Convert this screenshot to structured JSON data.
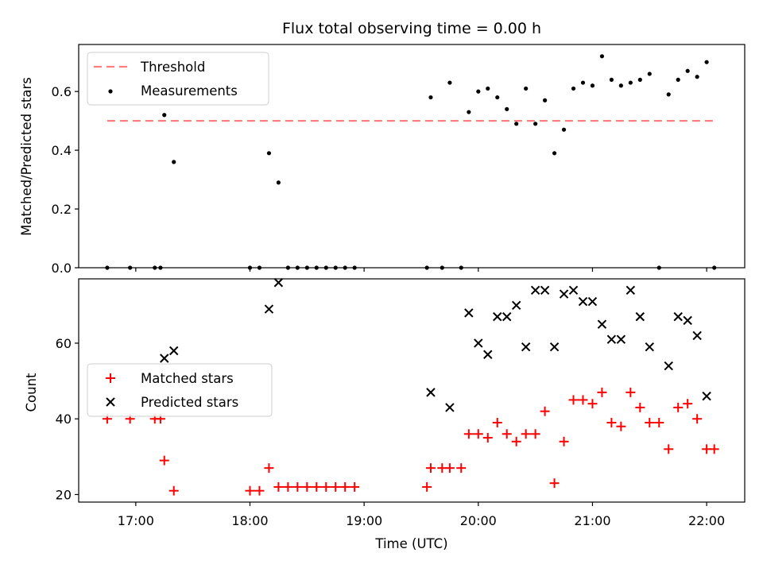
{
  "chart_data": [
    {
      "type": "scatter",
      "title": "Flux total observing time = 0.00 h",
      "ylabel": "Matched/Predicted stars",
      "xlabel": "",
      "xlim": [
        "16:30",
        "22:20"
      ],
      "ylim": [
        0,
        0.76
      ],
      "yticks": [
        "0.0",
        "0.2",
        "0.4",
        "0.6"
      ],
      "legend": {
        "position": "top-left",
        "entries": [
          "Threshold",
          "Measurements"
        ]
      },
      "threshold": {
        "name": "Threshold",
        "value": 0.5,
        "x_range": [
          "16:45",
          "22:05"
        ],
        "color": "#ff7f7f",
        "style": "dashed"
      },
      "series": [
        {
          "name": "Measurements",
          "color": "#000000",
          "marker": "dot",
          "points": [
            [
              "16:45",
              0
            ],
            [
              "16:57",
              0
            ],
            [
              "17:10",
              0
            ],
            [
              "17:13",
              0
            ],
            [
              "17:15",
              0.52
            ],
            [
              "17:20",
              0.36
            ],
            [
              "18:00",
              0
            ],
            [
              "18:05",
              0
            ],
            [
              "18:10",
              0.39
            ],
            [
              "18:15",
              0.29
            ],
            [
              "18:20",
              0
            ],
            [
              "18:25",
              0
            ],
            [
              "18:30",
              0
            ],
            [
              "18:35",
              0
            ],
            [
              "18:40",
              0
            ],
            [
              "18:45",
              0
            ],
            [
              "18:50",
              0
            ],
            [
              "18:55",
              0
            ],
            [
              "19:33",
              0
            ],
            [
              "19:35",
              0.58
            ],
            [
              "19:41",
              0
            ],
            [
              "19:45",
              0.63
            ],
            [
              "19:51",
              0
            ],
            [
              "19:55",
              0.53
            ],
            [
              "20:00",
              0.6
            ],
            [
              "20:05",
              0.61
            ],
            [
              "20:10",
              0.58
            ],
            [
              "20:15",
              0.54
            ],
            [
              "20:20",
              0.49
            ],
            [
              "20:25",
              0.61
            ],
            [
              "20:30",
              0.49
            ],
            [
              "20:35",
              0.57
            ],
            [
              "20:40",
              0.39
            ],
            [
              "20:45",
              0.47
            ],
            [
              "20:50",
              0.61
            ],
            [
              "20:55",
              0.63
            ],
            [
              "21:00",
              0.62
            ],
            [
              "21:05",
              0.72
            ],
            [
              "21:10",
              0.64
            ],
            [
              "21:15",
              0.62
            ],
            [
              "21:20",
              0.63
            ],
            [
              "21:25",
              0.64
            ],
            [
              "21:30",
              0.66
            ],
            [
              "21:35",
              0
            ],
            [
              "21:40",
              0.59
            ],
            [
              "21:45",
              0.64
            ],
            [
              "21:50",
              0.67
            ],
            [
              "21:55",
              0.65
            ],
            [
              "22:00",
              0.7
            ],
            [
              "22:04",
              0
            ]
          ]
        }
      ]
    },
    {
      "type": "scatter",
      "title": "",
      "ylabel": "Count",
      "xlabel": "Time (UTC)",
      "xlim": [
        "16:30",
        "22:20"
      ],
      "ylim": [
        18,
        77
      ],
      "xticks": [
        "17:00",
        "18:00",
        "19:00",
        "20:00",
        "21:00",
        "22:00"
      ],
      "yticks": [
        "20",
        "40",
        "60"
      ],
      "legend": {
        "position": "center-left",
        "entries": [
          "Matched stars",
          "Predicted stars"
        ]
      },
      "series": [
        {
          "name": "Matched stars",
          "color": "#ff0000",
          "marker": "plus",
          "points": [
            [
              "16:45",
              40
            ],
            [
              "16:57",
              40
            ],
            [
              "17:10",
              40
            ],
            [
              "17:13",
              40
            ],
            [
              "17:15",
              29
            ],
            [
              "17:20",
              21
            ],
            [
              "18:00",
              21
            ],
            [
              "18:05",
              21
            ],
            [
              "18:10",
              27
            ],
            [
              "18:15",
              22
            ],
            [
              "18:20",
              22
            ],
            [
              "18:25",
              22
            ],
            [
              "18:30",
              22
            ],
            [
              "18:35",
              22
            ],
            [
              "18:40",
              22
            ],
            [
              "18:45",
              22
            ],
            [
              "18:50",
              22
            ],
            [
              "18:55",
              22
            ],
            [
              "19:33",
              22
            ],
            [
              "19:35",
              27
            ],
            [
              "19:41",
              27
            ],
            [
              "19:45",
              27
            ],
            [
              "19:51",
              27
            ],
            [
              "19:55",
              36
            ],
            [
              "20:00",
              36
            ],
            [
              "20:05",
              35
            ],
            [
              "20:10",
              39
            ],
            [
              "20:15",
              36
            ],
            [
              "20:20",
              34
            ],
            [
              "20:25",
              36
            ],
            [
              "20:30",
              36
            ],
            [
              "20:35",
              42
            ],
            [
              "20:40",
              23
            ],
            [
              "20:45",
              34
            ],
            [
              "20:50",
              45
            ],
            [
              "20:55",
              45
            ],
            [
              "21:00",
              44
            ],
            [
              "21:05",
              47
            ],
            [
              "21:10",
              39
            ],
            [
              "21:15",
              38
            ],
            [
              "21:20",
              47
            ],
            [
              "21:25",
              43
            ],
            [
              "21:30",
              39
            ],
            [
              "21:35",
              39
            ],
            [
              "21:40",
              32
            ],
            [
              "21:45",
              43
            ],
            [
              "21:50",
              44
            ],
            [
              "21:55",
              40
            ],
            [
              "22:00",
              32
            ],
            [
              "22:04",
              32
            ]
          ]
        },
        {
          "name": "Predicted stars",
          "color": "#000000",
          "marker": "x",
          "points": [
            [
              "17:15",
              56
            ],
            [
              "17:20",
              58
            ],
            [
              "18:10",
              69
            ],
            [
              "18:15",
              76
            ],
            [
              "19:35",
              47
            ],
            [
              "19:45",
              43
            ],
            [
              "19:55",
              68
            ],
            [
              "20:00",
              60
            ],
            [
              "20:05",
              57
            ],
            [
              "20:10",
              67
            ],
            [
              "20:15",
              67
            ],
            [
              "20:20",
              70
            ],
            [
              "20:25",
              59
            ],
            [
              "20:30",
              74
            ],
            [
              "20:35",
              74
            ],
            [
              "20:40",
              59
            ],
            [
              "20:45",
              73
            ],
            [
              "20:50",
              74
            ],
            [
              "20:55",
              71
            ],
            [
              "21:00",
              71
            ],
            [
              "21:05",
              65
            ],
            [
              "21:10",
              61
            ],
            [
              "21:15",
              61
            ],
            [
              "21:20",
              74
            ],
            [
              "21:25",
              67
            ],
            [
              "21:30",
              59
            ],
            [
              "21:40",
              54
            ],
            [
              "21:45",
              67
            ],
            [
              "21:50",
              66
            ],
            [
              "21:55",
              62
            ],
            [
              "22:00",
              46
            ]
          ]
        }
      ]
    }
  ]
}
